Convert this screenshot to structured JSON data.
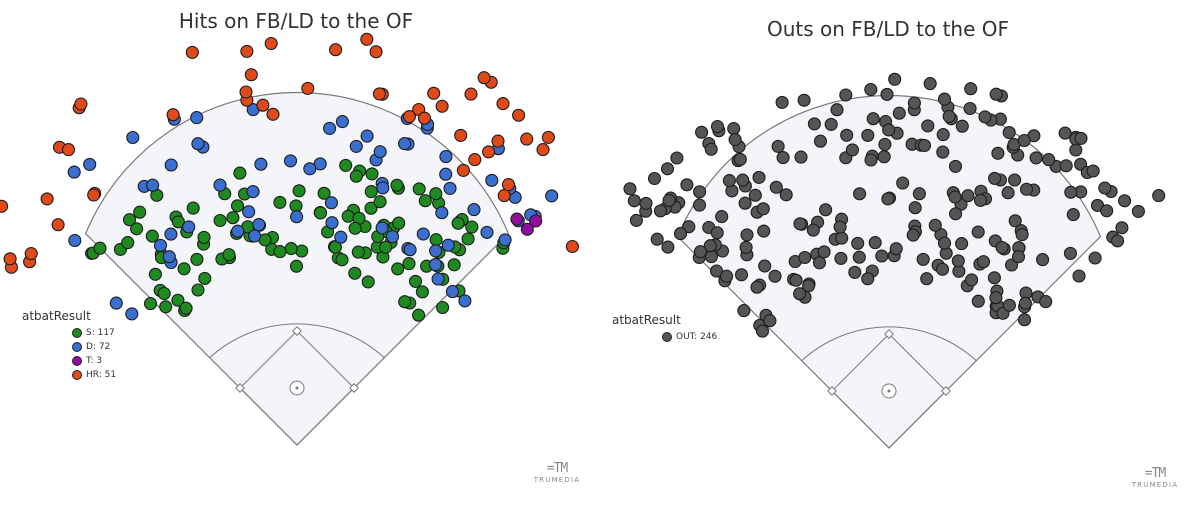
{
  "chart_data": [
    {
      "type": "scatter",
      "title": "Hits on FB/LD to the OF",
      "legend_title": "atbatResult",
      "legend_position": "bottom-left",
      "series": [
        {
          "name": "S: 117",
          "color": "#1f8a1f",
          "count": 117
        },
        {
          "name": "D: 72",
          "color": "#3a6fd0",
          "count": 72
        },
        {
          "name": "T: 3",
          "color": "#8e0f9c",
          "count": 3
        },
        {
          "name": "HR: 51",
          "color": "#e04a1b",
          "count": 51
        }
      ]
    },
    {
      "type": "scatter",
      "title": "Outs on FB/LD to the OF",
      "legend_title": "atbatResult",
      "legend_position": "bottom-left",
      "series": [
        {
          "name": "OUT: 246",
          "color": "#555555",
          "count": 246
        }
      ]
    }
  ],
  "branding": {
    "mark": "=TM",
    "text": "TRUMEDIA"
  },
  "colors": {
    "field": "#f3f5f9",
    "outline": "#7a7a7a",
    "point_stroke": "#1c1c1c"
  }
}
